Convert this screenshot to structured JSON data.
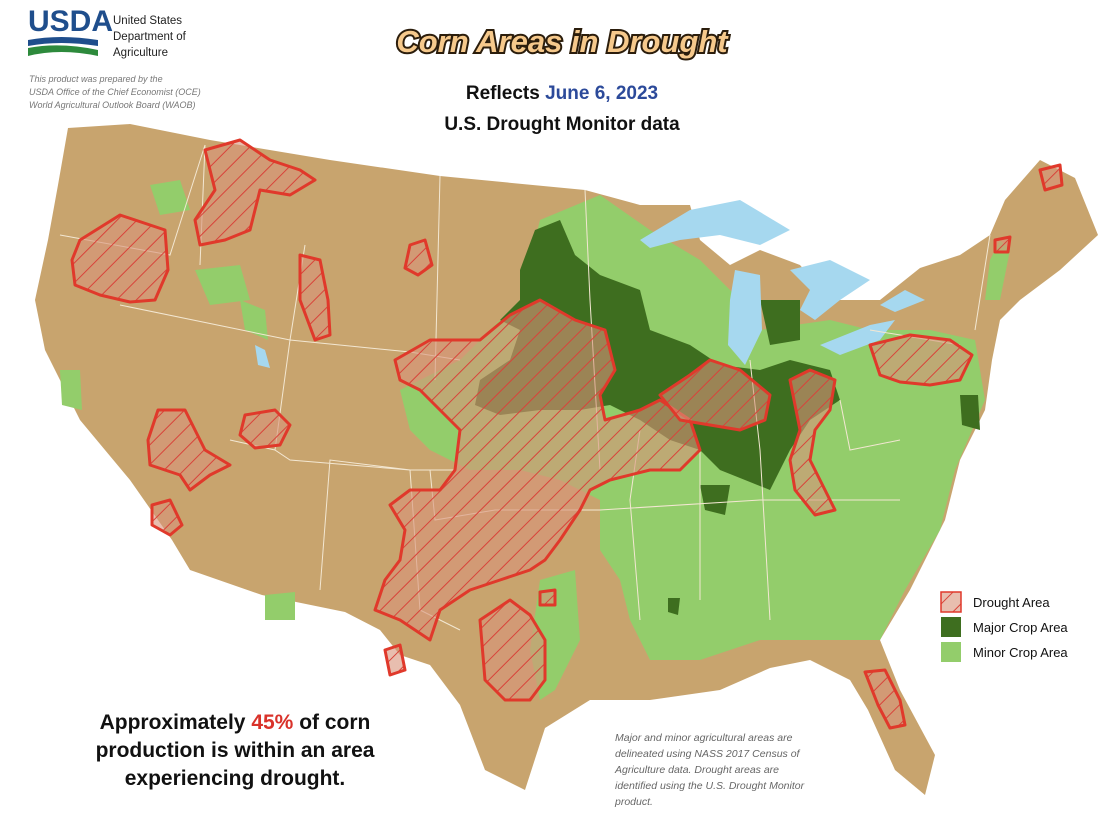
{
  "header": {
    "logo": "USDA",
    "agency": [
      "United States",
      "Department of",
      "Agriculture"
    ],
    "credit": [
      "This product was prepared by the",
      "USDA Office of the Chief Economist (OCE)",
      "World Agricultural Outlook Board (WAOB)"
    ]
  },
  "title": "Corn Areas in Drought",
  "subtitle": {
    "prefix": "Reflects",
    "date": "June 6, 2023",
    "source": "U.S. Drought Monitor data"
  },
  "legend": [
    {
      "label": "Drought Area"
    },
    {
      "label": "Major Crop Area"
    },
    {
      "label": "Minor Crop Area"
    }
  ],
  "summary": {
    "before": "Approximately",
    "share": "45%",
    "lines": [
      "of corn",
      "production is within an area",
      "experiencing drought."
    ]
  },
  "note": [
    "Major and minor agricultural areas are",
    "delineated using NASS 2017 Census of",
    "Agriculture data.  Drought areas are",
    "identified using the U.S. Drought Monitor",
    "product."
  ]
}
